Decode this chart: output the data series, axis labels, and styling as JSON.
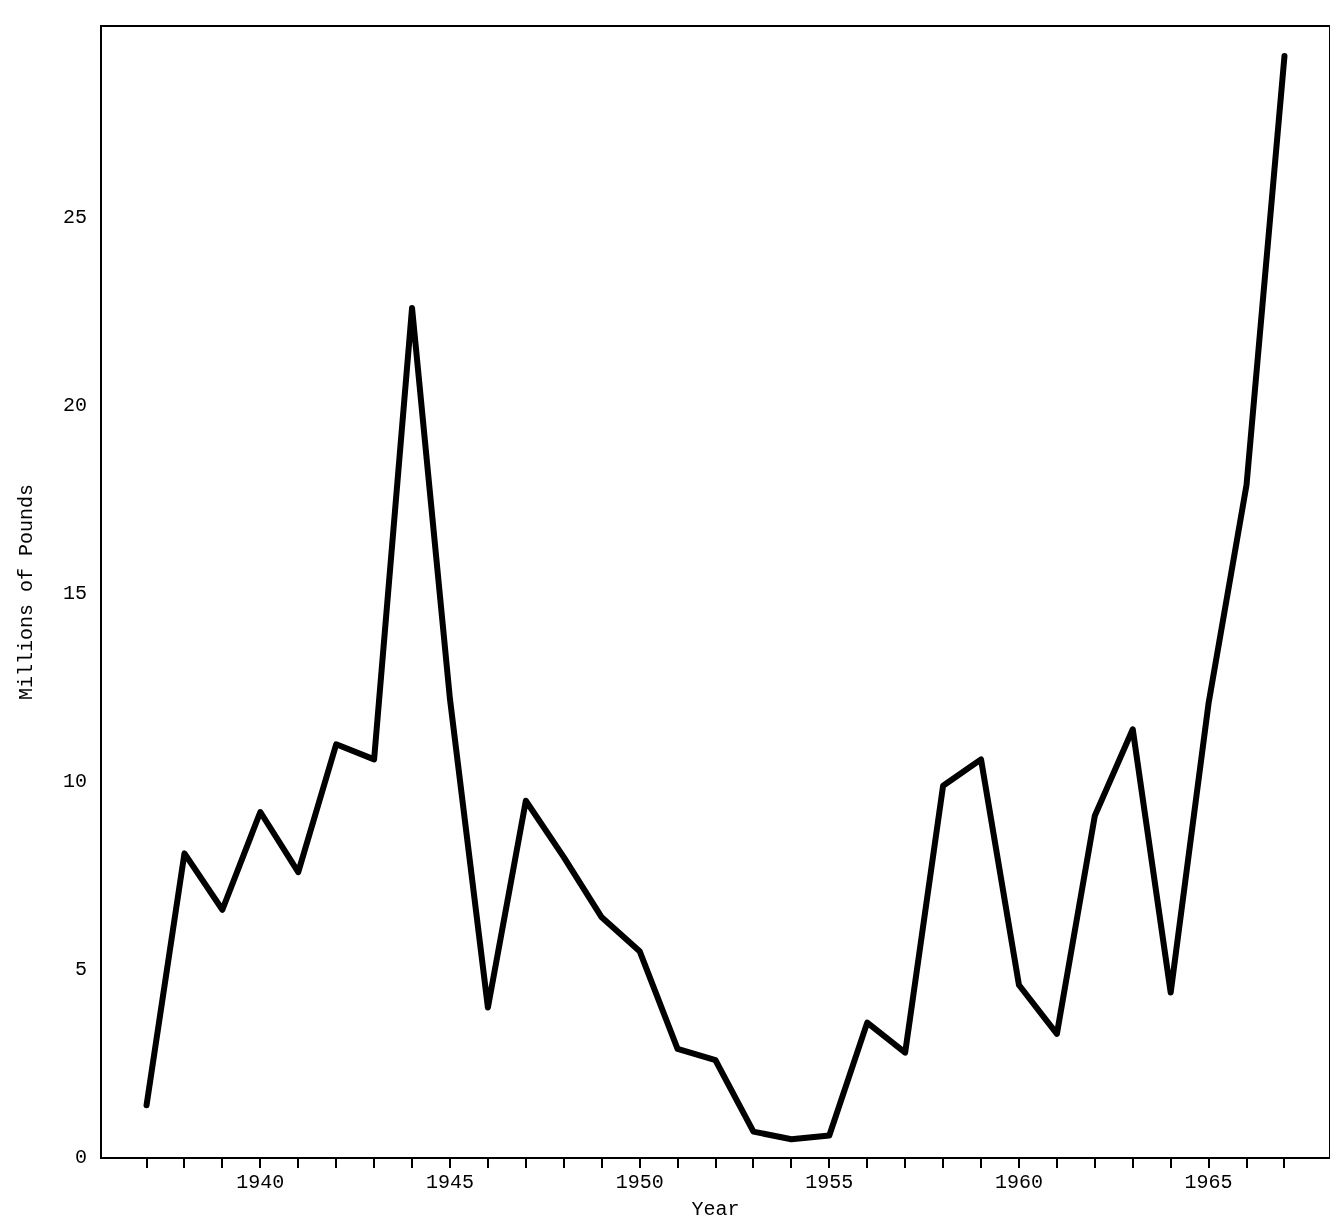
{
  "chart_data": {
    "type": "line",
    "xlabel": "Year",
    "ylabel": "Millions of Pounds",
    "x": [
      1937,
      1938,
      1939,
      1940,
      1941,
      1942,
      1943,
      1944,
      1945,
      1946,
      1947,
      1948,
      1949,
      1950,
      1951,
      1952,
      1953,
      1954,
      1955,
      1956,
      1957,
      1958,
      1959,
      1960,
      1961,
      1962,
      1963,
      1964,
      1965,
      1966,
      1967
    ],
    "values": [
      1.4,
      8.1,
      6.6,
      9.2,
      7.6,
      11.0,
      10.6,
      22.6,
      12.2,
      4.0,
      9.5,
      8.0,
      6.4,
      5.5,
      2.9,
      2.6,
      0.7,
      0.5,
      0.6,
      3.6,
      2.8,
      9.9,
      10.6,
      4.6,
      3.3,
      9.1,
      11.4,
      4.4,
      12.1,
      17.9,
      29.3
    ],
    "color": "#000000",
    "marker": "none",
    "line_style": "solid",
    "grid": false,
    "legend": false,
    "xlim": [
      1935.8,
      1968.2
    ],
    "ylim": [
      0,
      30.1
    ],
    "xticks": [
      {
        "value": 1937,
        "label": null
      },
      {
        "value": 1938,
        "label": null
      },
      {
        "value": 1939,
        "label": null
      },
      1940,
      {
        "value": 1941,
        "label": null
      },
      {
        "value": 1942,
        "label": null
      },
      {
        "value": 1943,
        "label": null
      },
      {
        "value": 1944,
        "label": null
      },
      1945,
      {
        "value": 1946,
        "label": null
      },
      {
        "value": 1947,
        "label": null
      },
      {
        "value": 1948,
        "label": null
      },
      {
        "value": 1949,
        "label": null
      },
      1950,
      {
        "value": 1951,
        "label": null
      },
      {
        "value": 1952,
        "label": null
      },
      {
        "value": 1953,
        "label": null
      },
      {
        "value": 1954,
        "label": null
      },
      1955,
      {
        "value": 1956,
        "label": null
      },
      {
        "value": 1957,
        "label": null
      },
      {
        "value": 1958,
        "label": null
      },
      {
        "value": 1959,
        "label": null
      },
      1960,
      {
        "value": 1961,
        "label": null
      },
      {
        "value": 1962,
        "label": null
      },
      {
        "value": 1963,
        "label": null
      },
      {
        "value": 1964,
        "label": null
      },
      1965,
      {
        "value": 1966,
        "label": null
      },
      {
        "value": 1967,
        "label": null
      }
    ],
    "yticks": [
      0,
      5,
      10,
      15,
      20,
      25
    ]
  }
}
